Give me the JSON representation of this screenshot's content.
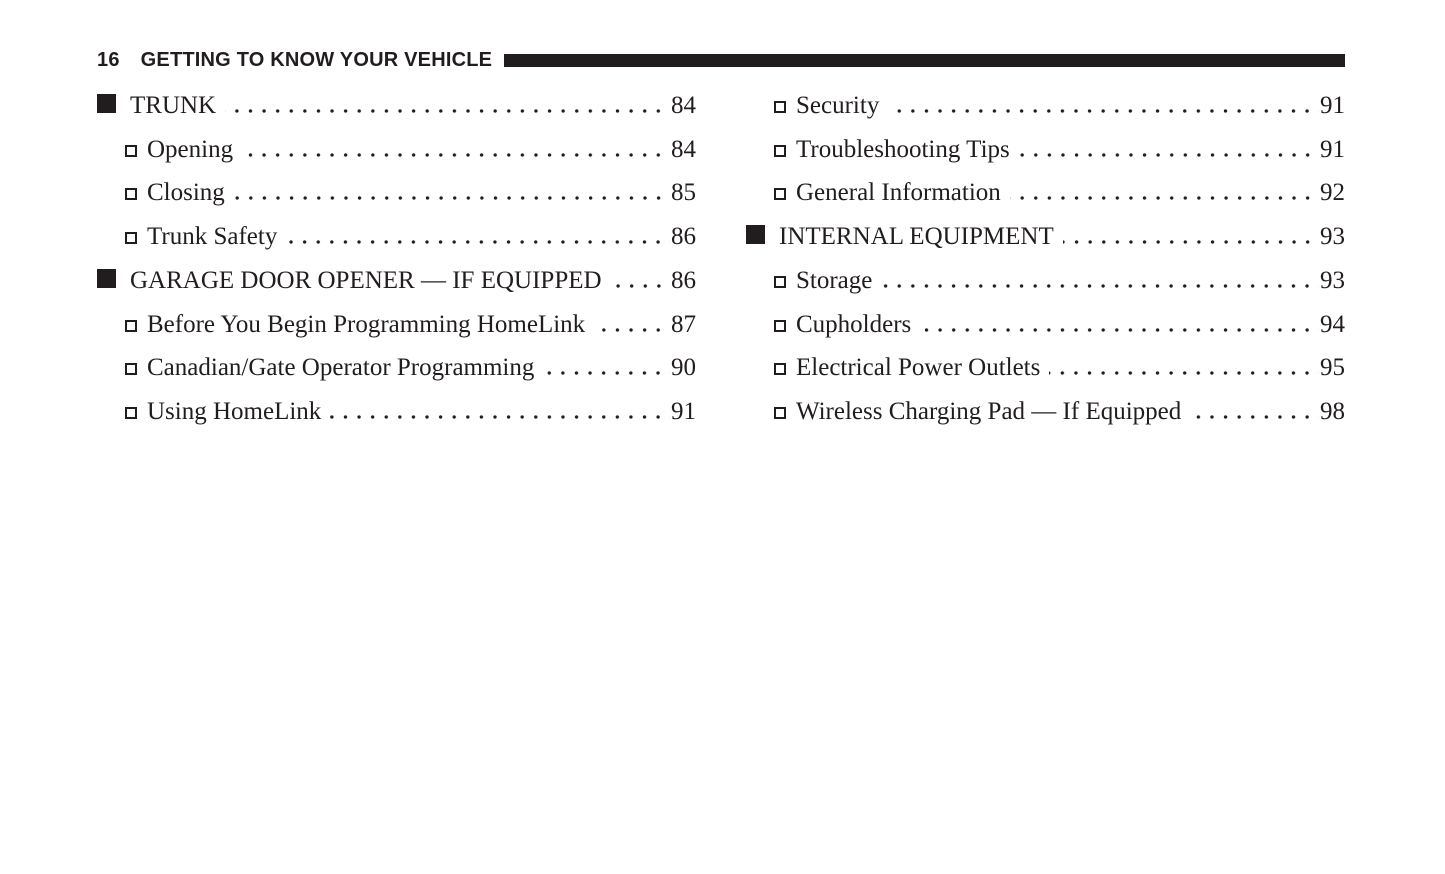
{
  "colors": {
    "ink": "#211d1e",
    "background": "#ffffff"
  },
  "icons": {
    "main_bullet": "filled-square",
    "sub_bullet": "hollow-square"
  },
  "header": {
    "page_number": "16",
    "chapter_title": "GETTING TO KNOW YOUR VEHICLE"
  },
  "toc": {
    "columns": [
      {
        "entries": [
          {
            "level": "main",
            "label": "TRUNK",
            "page": "84"
          },
          {
            "level": "sub",
            "label": "Opening",
            "page": "84"
          },
          {
            "level": "sub",
            "label": "Closing",
            "page": "85"
          },
          {
            "level": "sub",
            "label": "Trunk Safety",
            "page": "86"
          },
          {
            "level": "main",
            "label": "GARAGE DOOR OPENER — IF EQUIPPED",
            "page": "86"
          },
          {
            "level": "sub",
            "label": "Before You Begin Programming HomeLink",
            "page": "87"
          },
          {
            "level": "sub",
            "label": "Canadian/Gate Operator Programming",
            "page": "90"
          },
          {
            "level": "sub",
            "label": "Using HomeLink",
            "page": "91"
          }
        ]
      },
      {
        "entries": [
          {
            "level": "sub",
            "label": "Security",
            "page": "91"
          },
          {
            "level": "sub",
            "label": "Troubleshooting Tips",
            "page": "91"
          },
          {
            "level": "sub",
            "label": "General Information",
            "page": "92"
          },
          {
            "level": "main",
            "label": "INTERNAL EQUIPMENT",
            "page": "93"
          },
          {
            "level": "sub",
            "label": "Storage",
            "page": "93"
          },
          {
            "level": "sub",
            "label": "Cupholders",
            "page": "94"
          },
          {
            "level": "sub",
            "label": "Electrical Power Outlets",
            "page": "95"
          },
          {
            "level": "sub",
            "label": "Wireless Charging Pad — If Equipped",
            "page": "98"
          }
        ]
      }
    ]
  }
}
